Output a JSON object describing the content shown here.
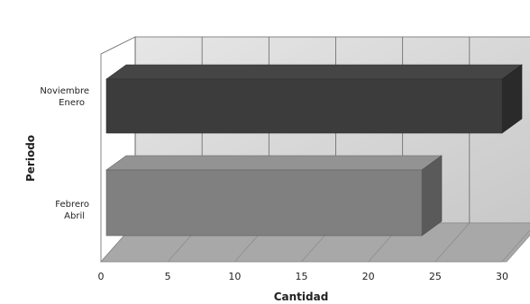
{
  "chart_data": {
    "type": "bar",
    "orientation": "horizontal",
    "three_d": true,
    "categories": [
      [
        "Noviembre",
        "Enero"
      ],
      [
        "Febrero",
        "Abril"
      ]
    ],
    "values": [
      30,
      24
    ],
    "xlabel": "Cantidad",
    "ylabel": "Periodo",
    "xlim": [
      0,
      30
    ],
    "xticks": [
      "0",
      "5",
      "10",
      "15",
      "20",
      "25",
      "30"
    ],
    "grid": true,
    "colors": {
      "bar_top": "#3c3c3c",
      "bar_bottom": "#808080",
      "floor": "#a8a8a8",
      "back_wall": "#d4d4d4",
      "grid": "#666666"
    }
  }
}
